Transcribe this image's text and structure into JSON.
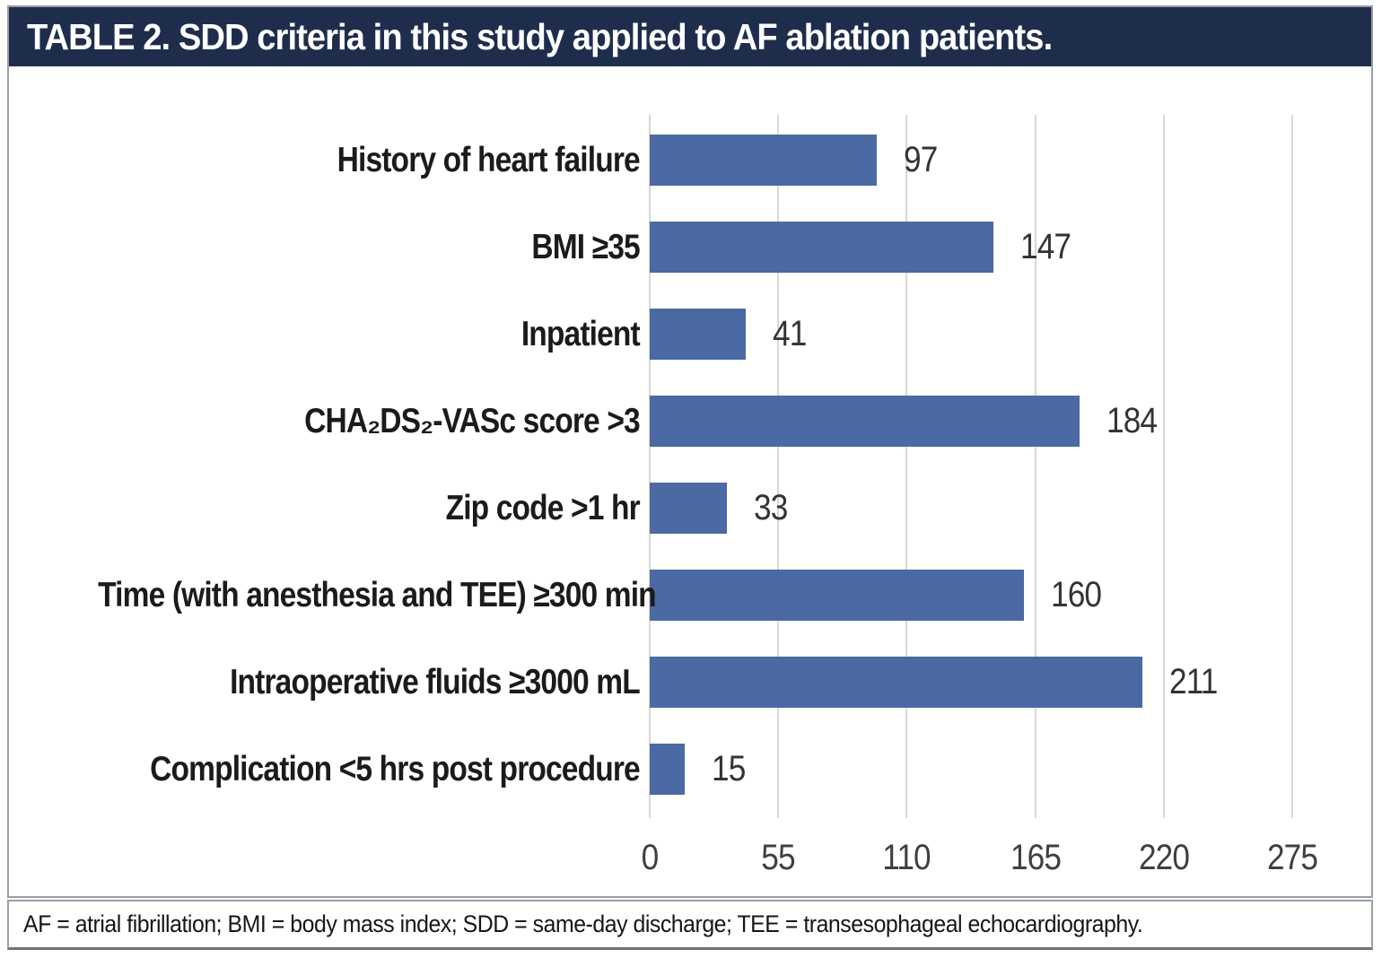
{
  "title": "TABLE 2. SDD criteria in this study applied to AF ablation patients.",
  "footnote": "AF = atrial fibrillation; BMI = body mass index; SDD = same-day discharge; TEE = transesophageal echocardiography.",
  "chart_data": {
    "type": "bar",
    "orientation": "horizontal",
    "categories": [
      "History of heart failure",
      "BMI ≥35",
      "Inpatient",
      "CHA₂DS₂-VASc score >3",
      "Zip code >1 hr",
      "Time (with anesthesia and TEE) ≥300 min",
      "Intraoperative fluids ≥3000 mL",
      "Complication <5 hrs post procedure"
    ],
    "values": [
      97,
      147,
      41,
      184,
      33,
      160,
      211,
      15
    ],
    "x_ticks": [
      0,
      55,
      110,
      165,
      220,
      275
    ],
    "xlim": [
      0,
      275
    ],
    "grid": true,
    "legend": "none",
    "data_labels": "outside-end"
  },
  "colors": {
    "title_bg": "#1f2d4d",
    "title_text": "#ffffff",
    "bar": "#4b69a3",
    "gridline": "#d8d8d8",
    "panel_border": "#99a0a8",
    "category_text": "#1b1b1b",
    "value_text": "#333333",
    "tick_text": "#3f3f3f"
  }
}
